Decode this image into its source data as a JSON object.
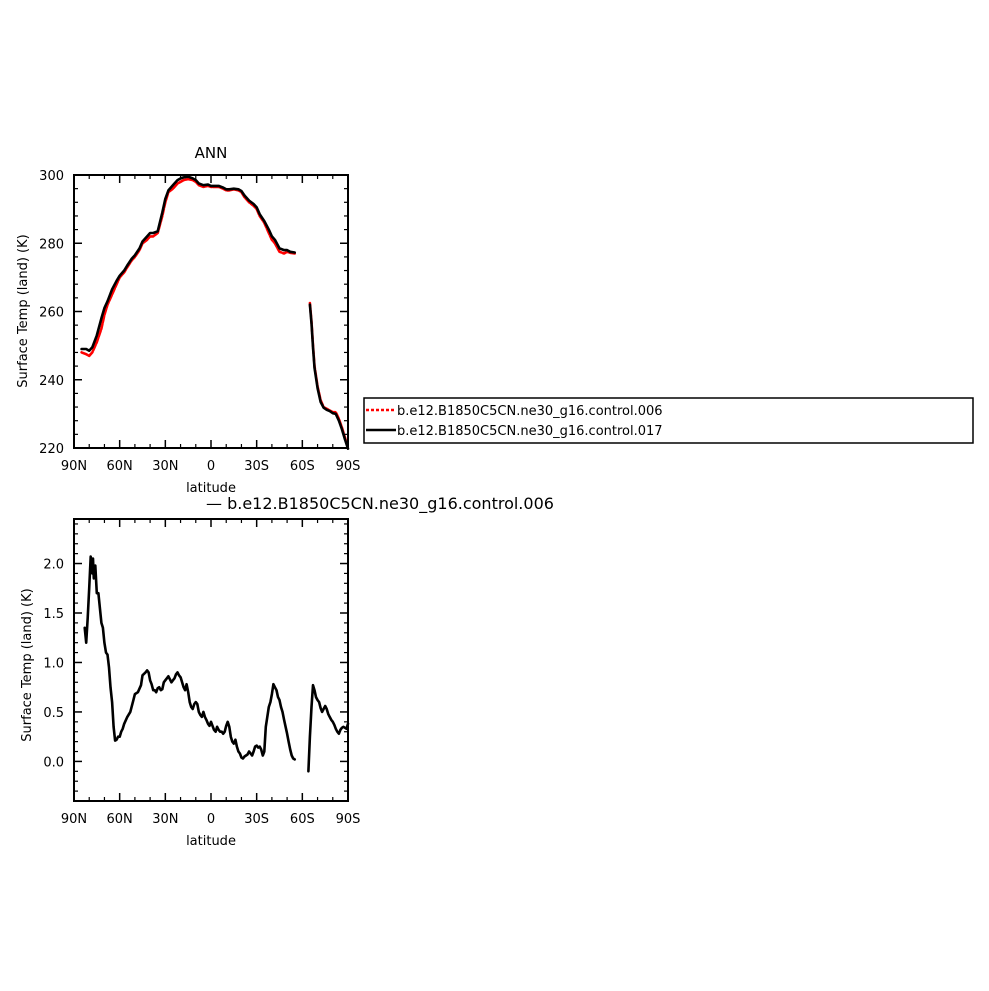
{
  "chart_data": [
    {
      "type": "line",
      "title": "ANN",
      "xlabel": "latitude",
      "ylabel": "Surface Temp (land) (K)",
      "xlim": [
        90,
        -90
      ],
      "ylim": [
        220,
        300
      ],
      "xticks": [
        90,
        60,
        30,
        0,
        -30,
        -60,
        -90
      ],
      "xtick_labels": [
        "90N",
        "60N",
        "30N",
        "0",
        "30S",
        "60S",
        "90S"
      ],
      "yticks": [
        220,
        240,
        260,
        280,
        300
      ],
      "ytick_labels": [
        "220",
        "240",
        "260",
        "280",
        "300"
      ],
      "legend": {
        "placement": "right"
      },
      "series": [
        {
          "name": "b.e12.B1850C5CN.ne30_g16.control.006",
          "color": "#ff0000",
          "style": "dashed",
          "segments": [
            {
              "x": [
                85,
                82,
                80,
                78,
                75,
                72,
                70,
                68,
                65,
                62,
                60,
                57,
                55,
                52,
                50,
                47,
                45,
                42,
                40,
                38,
                35,
                32,
                30,
                28,
                25,
                22,
                20,
                18,
                15,
                12,
                10,
                8,
                5,
                2,
                0,
                -2,
                -5,
                -8,
                -10,
                -12,
                -15,
                -18,
                -20,
                -22,
                -25,
                -28,
                -30,
                -32,
                -35,
                -38,
                -40,
                -42,
                -45,
                -48,
                -50,
                -52,
                -55
              ],
              "y": [
                248,
                247.5,
                247,
                248,
                251,
                255,
                259,
                262,
                265,
                268,
                270,
                271.5,
                273,
                275,
                276,
                278,
                280,
                281,
                282,
                282,
                283,
                288,
                292,
                295,
                296,
                297.5,
                298,
                298.5,
                298.8,
                298.5,
                298,
                297,
                296.5,
                296.8,
                296.5,
                296.5,
                296.5,
                296,
                295.5,
                295.5,
                295.8,
                295.5,
                295,
                293.5,
                292,
                291,
                290,
                288,
                286,
                283,
                281,
                280,
                277.5,
                277,
                277.5,
                277.2,
                277
              ]
            },
            {
              "x": [
                -65,
                -66,
                -67,
                -68,
                -70,
                -72,
                -74,
                -76,
                -78,
                -80,
                -82,
                -84,
                -86,
                -88,
                -90
              ],
              "y": [
                262.5,
                257,
                250,
                244,
                238,
                234,
                232,
                231.5,
                231,
                230.5,
                230.5,
                228.5,
                226,
                223,
                220
              ]
            }
          ]
        },
        {
          "name": "b.e12.B1850C5CN.ne30_g16.control.017",
          "color": "#000000",
          "style": "solid",
          "segments": [
            {
              "x": [
                85,
                82,
                80,
                78,
                75,
                72,
                70,
                68,
                65,
                62,
                60,
                57,
                55,
                52,
                50,
                47,
                45,
                42,
                40,
                38,
                35,
                32,
                30,
                28,
                25,
                22,
                20,
                18,
                15,
                12,
                10,
                8,
                5,
                2,
                0,
                -2,
                -5,
                -8,
                -10,
                -12,
                -15,
                -18,
                -20,
                -22,
                -25,
                -28,
                -30,
                -32,
                -35,
                -38,
                -40,
                -42,
                -45,
                -48,
                -50,
                -52,
                -55
              ],
              "y": [
                249,
                249,
                248.5,
                249.5,
                253,
                258,
                261,
                263,
                266.5,
                269,
                270.5,
                272,
                273.5,
                275.5,
                276.5,
                278.5,
                280.5,
                282,
                283,
                283,
                283.5,
                289,
                293,
                295.5,
                297,
                298.5,
                299,
                299.3,
                299.5,
                299,
                298.5,
                297.5,
                297,
                297.2,
                296.8,
                296.8,
                296.8,
                296.3,
                295.8,
                295.8,
                296,
                295.8,
                295.3,
                294,
                292.5,
                291.5,
                290.5,
                288.5,
                286.5,
                284,
                282,
                281,
                278.5,
                278,
                278,
                277.5,
                277.3
              ]
            },
            {
              "x": [
                -65,
                -66,
                -67,
                -68,
                -70,
                -72,
                -74,
                -76,
                -78,
                -80,
                -82,
                -84,
                -86,
                -88,
                -90
              ],
              "y": [
                262,
                256.5,
                249.5,
                243.5,
                237.5,
                233.5,
                231.8,
                231.2,
                230.8,
                230.2,
                230,
                228,
                225.5,
                222.5,
                219.8
              ]
            }
          ]
        }
      ]
    },
    {
      "type": "line",
      "title": "— b.e12.B1850C5CN.ne30_g16.control.006",
      "xlabel": "latitude",
      "ylabel": "Surface Temp (land) (K)",
      "xlim": [
        90,
        -90
      ],
      "ylim": [
        -0.4,
        2.45
      ],
      "xticks": [
        90,
        60,
        30,
        0,
        -30,
        -60,
        -90
      ],
      "xtick_labels": [
        "90N",
        "60N",
        "30N",
        "0",
        "30S",
        "60S",
        "90S"
      ],
      "yticks": [
        0.0,
        0.5,
        1.0,
        1.5,
        2.0
      ],
      "ytick_labels": [
        "0.0",
        "0.5",
        "1.0",
        "1.5",
        "2.0"
      ],
      "series": [
        {
          "color": "#000000",
          "style": "solid",
          "segments": [
            {
              "x": [
                83,
                82,
                81,
                80,
                79,
                78,
                77.5,
                77,
                76,
                75,
                74,
                73,
                72,
                71,
                70,
                69,
                68,
                67,
                66,
                65,
                64,
                63,
                62,
                61,
                60,
                59,
                58,
                57,
                55,
                53,
                51,
                50,
                48,
                46,
                45,
                43,
                42,
                41,
                40,
                39,
                38,
                37,
                36,
                35,
                34,
                33,
                32,
                31,
                30,
                28,
                26,
                25,
                24,
                23,
                22,
                21,
                20,
                19,
                18,
                17,
                16,
                15,
                14,
                13,
                12,
                11,
                10,
                9,
                8,
                7,
                6,
                5,
                4,
                3,
                2,
                1,
                0,
                -1,
                -2,
                -3,
                -4,
                -5,
                -6,
                -7,
                -8,
                -9,
                -10,
                -11,
                -12,
                -13,
                -14,
                -15,
                -16,
                -17,
                -18,
                -19,
                -20,
                -21,
                -22,
                -23,
                -24,
                -25,
                -26,
                -27,
                -28,
                -29,
                -30,
                -31,
                -32,
                -33,
                -34,
                -35,
                -36,
                -37,
                -38,
                -39,
                -40,
                -41,
                -42,
                -43,
                -44,
                -45,
                -46,
                -47,
                -48,
                -49,
                -50,
                -51,
                -52,
                -53,
                -54,
                -55
              ],
              "y": [
                1.35,
                1.2,
                1.45,
                1.75,
                2.07,
                1.9,
                2.05,
                1.85,
                1.98,
                1.7,
                1.7,
                1.55,
                1.4,
                1.35,
                1.2,
                1.1,
                1.08,
                0.95,
                0.75,
                0.6,
                0.35,
                0.21,
                0.22,
                0.25,
                0.25,
                0.3,
                0.33,
                0.38,
                0.45,
                0.5,
                0.62,
                0.68,
                0.7,
                0.77,
                0.87,
                0.9,
                0.92,
                0.9,
                0.82,
                0.78,
                0.72,
                0.72,
                0.7,
                0.74,
                0.75,
                0.72,
                0.73,
                0.8,
                0.82,
                0.86,
                0.8,
                0.82,
                0.84,
                0.88,
                0.9,
                0.87,
                0.85,
                0.8,
                0.75,
                0.72,
                0.78,
                0.7,
                0.6,
                0.55,
                0.53,
                0.58,
                0.6,
                0.58,
                0.5,
                0.47,
                0.45,
                0.5,
                0.45,
                0.42,
                0.38,
                0.36,
                0.4,
                0.36,
                0.32,
                0.3,
                0.35,
                0.32,
                0.3,
                0.3,
                0.28,
                0.3,
                0.36,
                0.4,
                0.35,
                0.25,
                0.2,
                0.18,
                0.22,
                0.15,
                0.1,
                0.08,
                0.04,
                0.03,
                0.05,
                0.06,
                0.07,
                0.1,
                0.08,
                0.06,
                0.1,
                0.15,
                0.16,
                0.14,
                0.15,
                0.12,
                0.06,
                0.1,
                0.35,
                0.45,
                0.55,
                0.6,
                0.68,
                0.78,
                0.75,
                0.72,
                0.65,
                0.62,
                0.55,
                0.5,
                0.42,
                0.35,
                0.28,
                0.2,
                0.12,
                0.06,
                0.03,
                0.02
              ]
            },
            {
              "x": [
                -64,
                -65,
                -66,
                -67,
                -68,
                -69,
                -70,
                -71,
                -72,
                -73,
                -74,
                -75,
                -76,
                -77,
                -78,
                -79,
                -80,
                -81,
                -82,
                -83,
                -84,
                -85,
                -86,
                -87,
                -88,
                -89,
                -90
              ],
              "y": [
                -0.1,
                0.25,
                0.55,
                0.77,
                0.72,
                0.65,
                0.62,
                0.6,
                0.54,
                0.5,
                0.53,
                0.56,
                0.53,
                0.48,
                0.45,
                0.42,
                0.4,
                0.37,
                0.33,
                0.3,
                0.28,
                0.32,
                0.34,
                0.35,
                0.34,
                0.33,
                0.38
              ]
            }
          ]
        }
      ]
    }
  ]
}
